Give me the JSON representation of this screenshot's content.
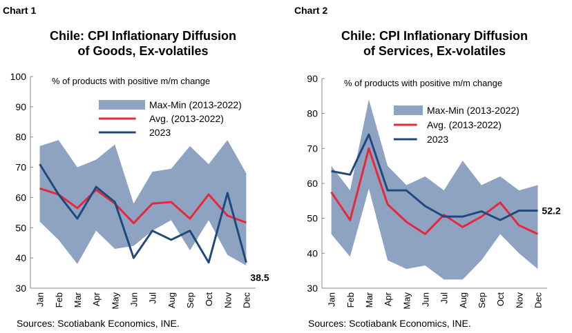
{
  "chart_data": [
    {
      "type": "band-line",
      "label": "Chart 1",
      "title": [
        "Chile: CPI Inflationary Diffusion",
        "of Goods, Ex-volatiles"
      ],
      "annotation": "% of products with positive m/m change",
      "source": "Sources: Scotiabank Economics, INE.",
      "categories": [
        "Jan",
        "Feb",
        "Mar",
        "Apr",
        "May",
        "Jun",
        "Jul",
        "Aug",
        "Sep",
        "Oct",
        "Nov",
        "Dec"
      ],
      "ylim": [
        30,
        100
      ],
      "yticks": [
        30,
        40,
        50,
        60,
        70,
        80,
        90,
        100
      ],
      "series": [
        {
          "name": "Max-Min (2013-2022)",
          "color": "#8ea3c2",
          "high": [
            77,
            79,
            70,
            72.5,
            77.5,
            58,
            68.5,
            69.5,
            77,
            71,
            79,
            68
          ],
          "low": [
            52,
            46,
            38,
            49,
            43,
            44,
            49,
            52.5,
            42.5,
            52.5,
            41,
            37.5
          ]
        },
        {
          "name": "Avg. (2013-2022)",
          "color": "#e8273a",
          "values": [
            63,
            61,
            56.5,
            62.5,
            58,
            51.5,
            58,
            58.5,
            53,
            61,
            54,
            51.7
          ]
        },
        {
          "name": "2023",
          "color": "#1f497d",
          "values": [
            71,
            61,
            53,
            63.5,
            58.5,
            40,
            49,
            46,
            49,
            38.5,
            61.5,
            38.5
          ],
          "label_last": true
        }
      ]
    },
    {
      "type": "band-line",
      "label": "Chart 2",
      "title": [
        "Chile: CPI Inflationary Diffusion",
        "of Services, Ex-volatiles"
      ],
      "annotation": "% of products with positive m/m change",
      "source": "Sources: Scotiabank Economics, INE.",
      "categories": [
        "Jan",
        "Feb",
        "Mar",
        "Apr",
        "May",
        "Jun",
        "Jul",
        "Aug",
        "Sep",
        "Oct",
        "Nov",
        "Dec"
      ],
      "ylim": [
        30,
        90
      ],
      "yticks": [
        30,
        40,
        50,
        60,
        70,
        80,
        90
      ],
      "series": [
        {
          "name": "Max-Min (2013-2022)",
          "color": "#8ea3c2",
          "high": [
            65,
            58,
            84,
            65,
            59.5,
            62,
            58,
            66.5,
            59.5,
            62,
            58,
            59.5
          ],
          "low": [
            45.5,
            39,
            58.5,
            38,
            35.5,
            36.5,
            32.5,
            32.5,
            38,
            45.5,
            40,
            35.5
          ]
        },
        {
          "name": "Avg. (2013-2022)",
          "color": "#e8273a",
          "values": [
            57.5,
            49.5,
            70,
            54,
            49,
            45.5,
            51,
            47.5,
            50.5,
            54.5,
            48,
            45.5
          ]
        },
        {
          "name": "2023",
          "color": "#1f497d",
          "values": [
            63.5,
            62.5,
            74,
            58,
            58,
            53.5,
            50.5,
            50.5,
            52,
            49.5,
            52.2,
            52.2
          ],
          "label_last": true
        }
      ]
    }
  ]
}
